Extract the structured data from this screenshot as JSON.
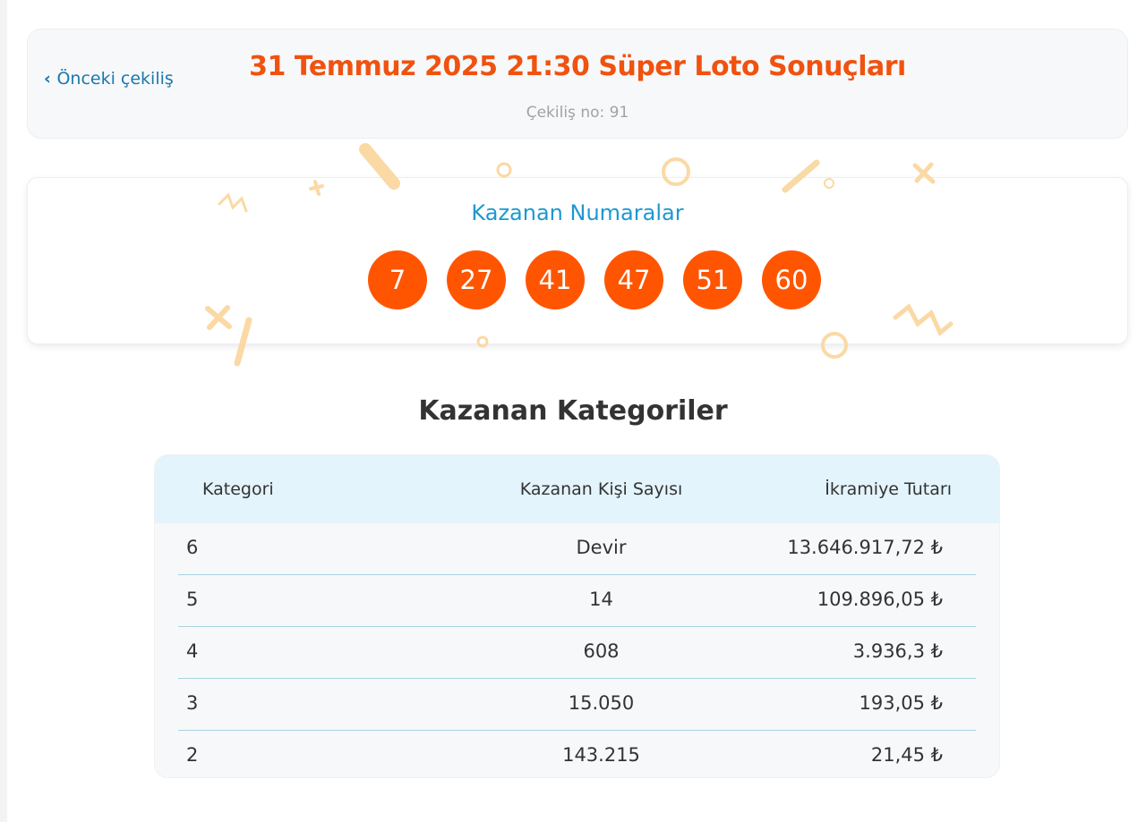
{
  "header": {
    "prev_link": "Önceki çekiliş",
    "title": "31 Temmuz 2025 21:30 Süper Loto Sonuçları",
    "draw_no": "Çekiliş no: 91"
  },
  "winning": {
    "title": "Kazanan Numaralar",
    "numbers": [
      "7",
      "27",
      "41",
      "47",
      "51",
      "60"
    ]
  },
  "categories": {
    "title": "Kazanan Kategoriler",
    "columns": [
      "Kategori",
      "Kazanan Kişi Sayısı",
      "İkramiye Tutarı"
    ],
    "rows": [
      [
        "6",
        "Devir",
        "13.646.917,72 ₺"
      ],
      [
        "5",
        "14",
        "109.896,05 ₺"
      ],
      [
        "4",
        "608",
        "3.936,3 ₺"
      ],
      [
        "3",
        "15.050",
        "193,05 ₺"
      ],
      [
        "2",
        "143.215",
        "21,45 ₺"
      ]
    ]
  },
  "colors": {
    "title": "#f0520f",
    "ball": "#ff5500",
    "link": "#1a78ae",
    "subtitle": "#1e98cf",
    "table_header": "#e3f4fc"
  }
}
